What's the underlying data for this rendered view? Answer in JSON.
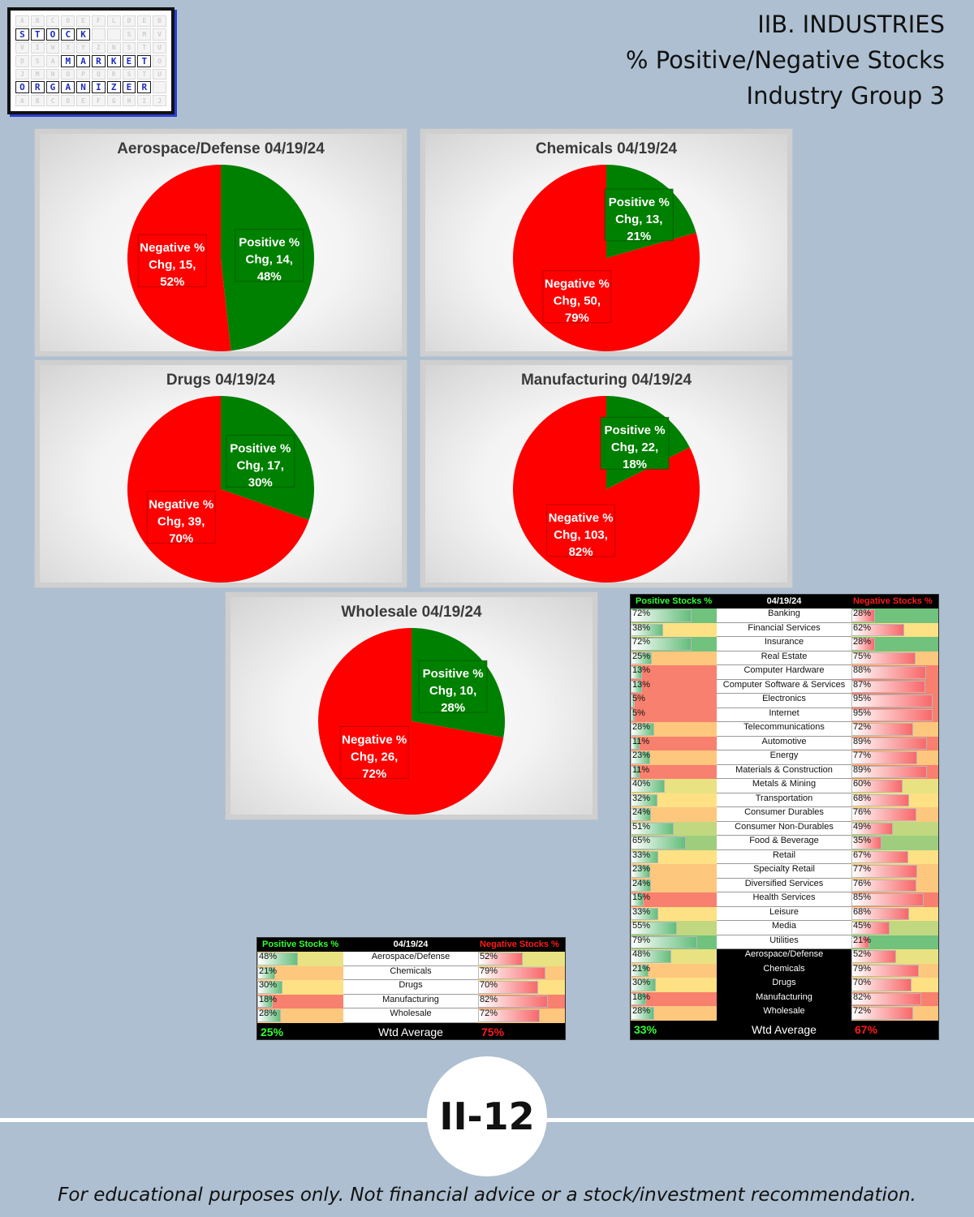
{
  "logo": {
    "rows": [
      "ABCDEFLDEB",
      "STOCK--SMV",
      "VIWXYZNSTU",
      "DSAMARKETO",
      "JMNOPQRSTU",
      "ORGANIZER-",
      "ABCDEFGHIJ"
    ],
    "highlight": [
      [
        1,
        0
      ],
      [
        1,
        1
      ],
      [
        1,
        2
      ],
      [
        1,
        3
      ],
      [
        1,
        4
      ],
      [
        3,
        3
      ],
      [
        3,
        4
      ],
      [
        3,
        5
      ],
      [
        3,
        6
      ],
      [
        3,
        7
      ],
      [
        3,
        8
      ],
      [
        5,
        0
      ],
      [
        5,
        1
      ],
      [
        5,
        2
      ],
      [
        5,
        3
      ],
      [
        5,
        4
      ],
      [
        5,
        5
      ],
      [
        5,
        6
      ],
      [
        5,
        7
      ],
      [
        5,
        8
      ]
    ],
    "words": [
      "STOCK",
      "MARKET",
      "ORGANIZER"
    ]
  },
  "header": {
    "line1": "IIB. INDUSTRIES",
    "line2": "% Positive/Negative Stocks",
    "line3": "Industry Group 3"
  },
  "colors": {
    "positive": "#008000",
    "negative": "#ff0000",
    "pos_text": "#33ff33",
    "neg_text": "#ff1a1a"
  },
  "chart_data": [
    {
      "type": "pie",
      "title": "Aerospace/Defense 04/19/24",
      "slices": [
        {
          "name": "Positive % Chg",
          "value": 14,
          "pct": "48%"
        },
        {
          "name": "Negative % Chg",
          "value": 15,
          "pct": "52%"
        }
      ]
    },
    {
      "type": "pie",
      "title": "Chemicals 04/19/24",
      "slices": [
        {
          "name": "Positive % Chg",
          "value": 13,
          "pct": "21%"
        },
        {
          "name": "Negative % Chg",
          "value": 50,
          "pct": "79%"
        }
      ]
    },
    {
      "type": "pie",
      "title": "Drugs 04/19/24",
      "slices": [
        {
          "name": "Positive % Chg",
          "value": 17,
          "pct": "30%"
        },
        {
          "name": "Negative % Chg",
          "value": 39,
          "pct": "70%"
        }
      ]
    },
    {
      "type": "pie",
      "title": "Manufacturing 04/19/24",
      "slices": [
        {
          "name": "Positive % Chg",
          "value": 22,
          "pct": "18%"
        },
        {
          "name": "Negative % Chg",
          "value": 103,
          "pct": "82%"
        }
      ]
    },
    {
      "type": "pie",
      "title": "Wholesale 04/19/24",
      "slices": [
        {
          "name": "Positive % Chg",
          "value": 10,
          "pct": "28%"
        },
        {
          "name": "Negative % Chg",
          "value": 26,
          "pct": "72%"
        }
      ]
    },
    {
      "type": "table",
      "title": "04/19/24",
      "columns": [
        "Positive Stocks %",
        "04/19/24",
        "Negative Stocks %"
      ],
      "rows": [
        {
          "name": "Aerospace/Defense",
          "pos": 48,
          "neg": 52
        },
        {
          "name": "Chemicals",
          "pos": 21,
          "neg": 79
        },
        {
          "name": "Drugs",
          "pos": 30,
          "neg": 70
        },
        {
          "name": "Manufacturing",
          "pos": 18,
          "neg": 82
        },
        {
          "name": "Wholesale",
          "pos": 28,
          "neg": 72
        }
      ],
      "summary": {
        "label": "Wtd Average",
        "pos": "25%",
        "neg": "75%"
      }
    },
    {
      "type": "table",
      "title": "04/19/24",
      "columns": [
        "Positive Stocks %",
        "04/19/24",
        "Negative Stocks %"
      ],
      "rows": [
        {
          "name": "Banking",
          "pos": 72,
          "neg": 28
        },
        {
          "name": "Financial Services",
          "pos": 38,
          "neg": 62
        },
        {
          "name": "Insurance",
          "pos": 72,
          "neg": 28
        },
        {
          "name": "Real Estate",
          "pos": 25,
          "neg": 75
        },
        {
          "name": "Computer Hardware",
          "pos": 13,
          "neg": 88
        },
        {
          "name": "Computer Software & Services",
          "pos": 13,
          "neg": 87
        },
        {
          "name": "Electronics",
          "pos": 5,
          "neg": 95
        },
        {
          "name": "Internet",
          "pos": 5,
          "neg": 95
        },
        {
          "name": "Telecommunications",
          "pos": 28,
          "neg": 72
        },
        {
          "name": "Automotive",
          "pos": 11,
          "neg": 89
        },
        {
          "name": "Energy",
          "pos": 23,
          "neg": 77
        },
        {
          "name": "Materials & Construction",
          "pos": 11,
          "neg": 89
        },
        {
          "name": "Metals & Mining",
          "pos": 40,
          "neg": 60
        },
        {
          "name": "Transportation",
          "pos": 32,
          "neg": 68
        },
        {
          "name": "Consumer Durables",
          "pos": 24,
          "neg": 76
        },
        {
          "name": "Consumer Non-Durables",
          "pos": 51,
          "neg": 49
        },
        {
          "name": "Food & Beverage",
          "pos": 65,
          "neg": 35
        },
        {
          "name": "Retail",
          "pos": 33,
          "neg": 67
        },
        {
          "name": "Specialty Retail",
          "pos": 23,
          "neg": 77
        },
        {
          "name": "Diversified Services",
          "pos": 24,
          "neg": 76
        },
        {
          "name": "Health Services",
          "pos": 15,
          "neg": 85
        },
        {
          "name": "Leisure",
          "pos": 33,
          "neg": 68
        },
        {
          "name": "Media",
          "pos": 55,
          "neg": 45
        },
        {
          "name": "Utilities",
          "pos": 79,
          "neg": 21
        },
        {
          "name": "Aerospace/Defense",
          "pos": 48,
          "neg": 52,
          "group3": true
        },
        {
          "name": "Chemicals",
          "pos": 21,
          "neg": 79,
          "group3": true
        },
        {
          "name": "Drugs",
          "pos": 30,
          "neg": 70,
          "group3": true
        },
        {
          "name": "Manufacturing",
          "pos": 18,
          "neg": 82,
          "group3": true
        },
        {
          "name": "Wholesale",
          "pos": 28,
          "neg": 72,
          "group3": true
        }
      ],
      "summary": {
        "label": "Wtd Average",
        "pos": "33%",
        "neg": "67%"
      }
    }
  ],
  "footer": {
    "page": "II-12",
    "disclaimer": "For educational purposes only. Not financial advice or a stock/investment recommendation."
  }
}
